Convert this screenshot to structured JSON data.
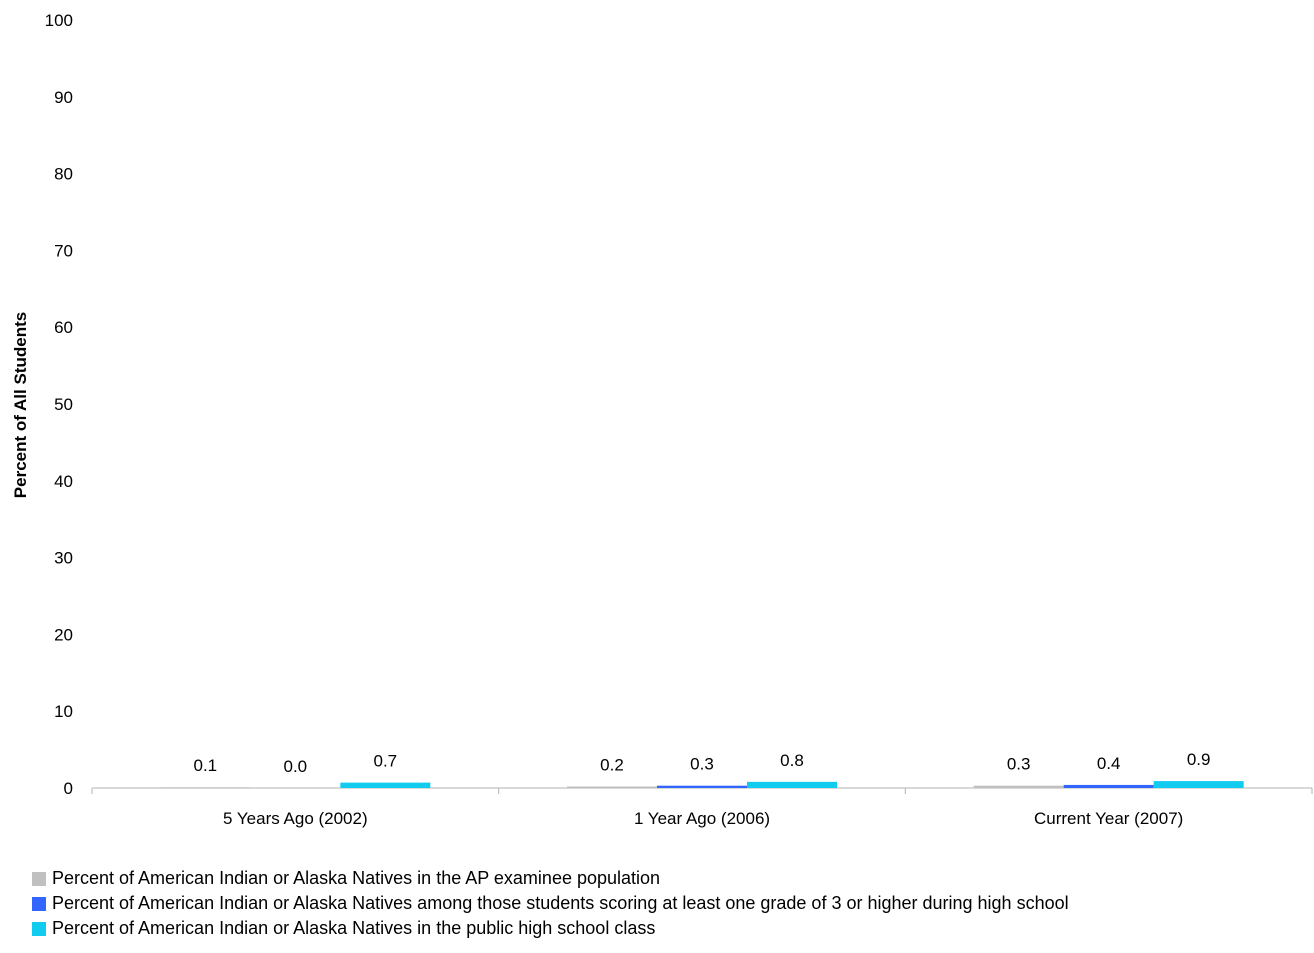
{
  "chart_data": {
    "type": "bar",
    "title": "",
    "xlabel": "",
    "ylabel": "Percent of All Students",
    "ylim": [
      0,
      100
    ],
    "yticks": [
      0,
      10,
      20,
      30,
      40,
      50,
      60,
      70,
      80,
      90,
      100
    ],
    "categories": [
      "5 Years Ago (2002)",
      "1 Year Ago (2006)",
      "Current Year (2007)"
    ],
    "series": [
      {
        "name": "Percent of American Indian or Alaska Natives in the AP examinee population",
        "color": "#c0c0c0",
        "values": [
          0.1,
          0.2,
          0.3
        ],
        "labels": [
          "0.1",
          "0.2",
          "0.3"
        ]
      },
      {
        "name": "Percent of American Indian or Alaska Natives among those students scoring at least one grade of 3 or higher during high school",
        "color": "#3366ff",
        "values": [
          0.0,
          0.3,
          0.4
        ],
        "labels": [
          "0.0",
          "0.3",
          "0.4"
        ]
      },
      {
        "name": "Percent of American Indian or Alaska Natives in the public high school class",
        "color": "#11ccee",
        "values": [
          0.7,
          0.8,
          0.9
        ],
        "labels": [
          "0.7",
          "0.8",
          "0.9"
        ]
      }
    ],
    "grid": false,
    "legend_position": "bottom"
  }
}
